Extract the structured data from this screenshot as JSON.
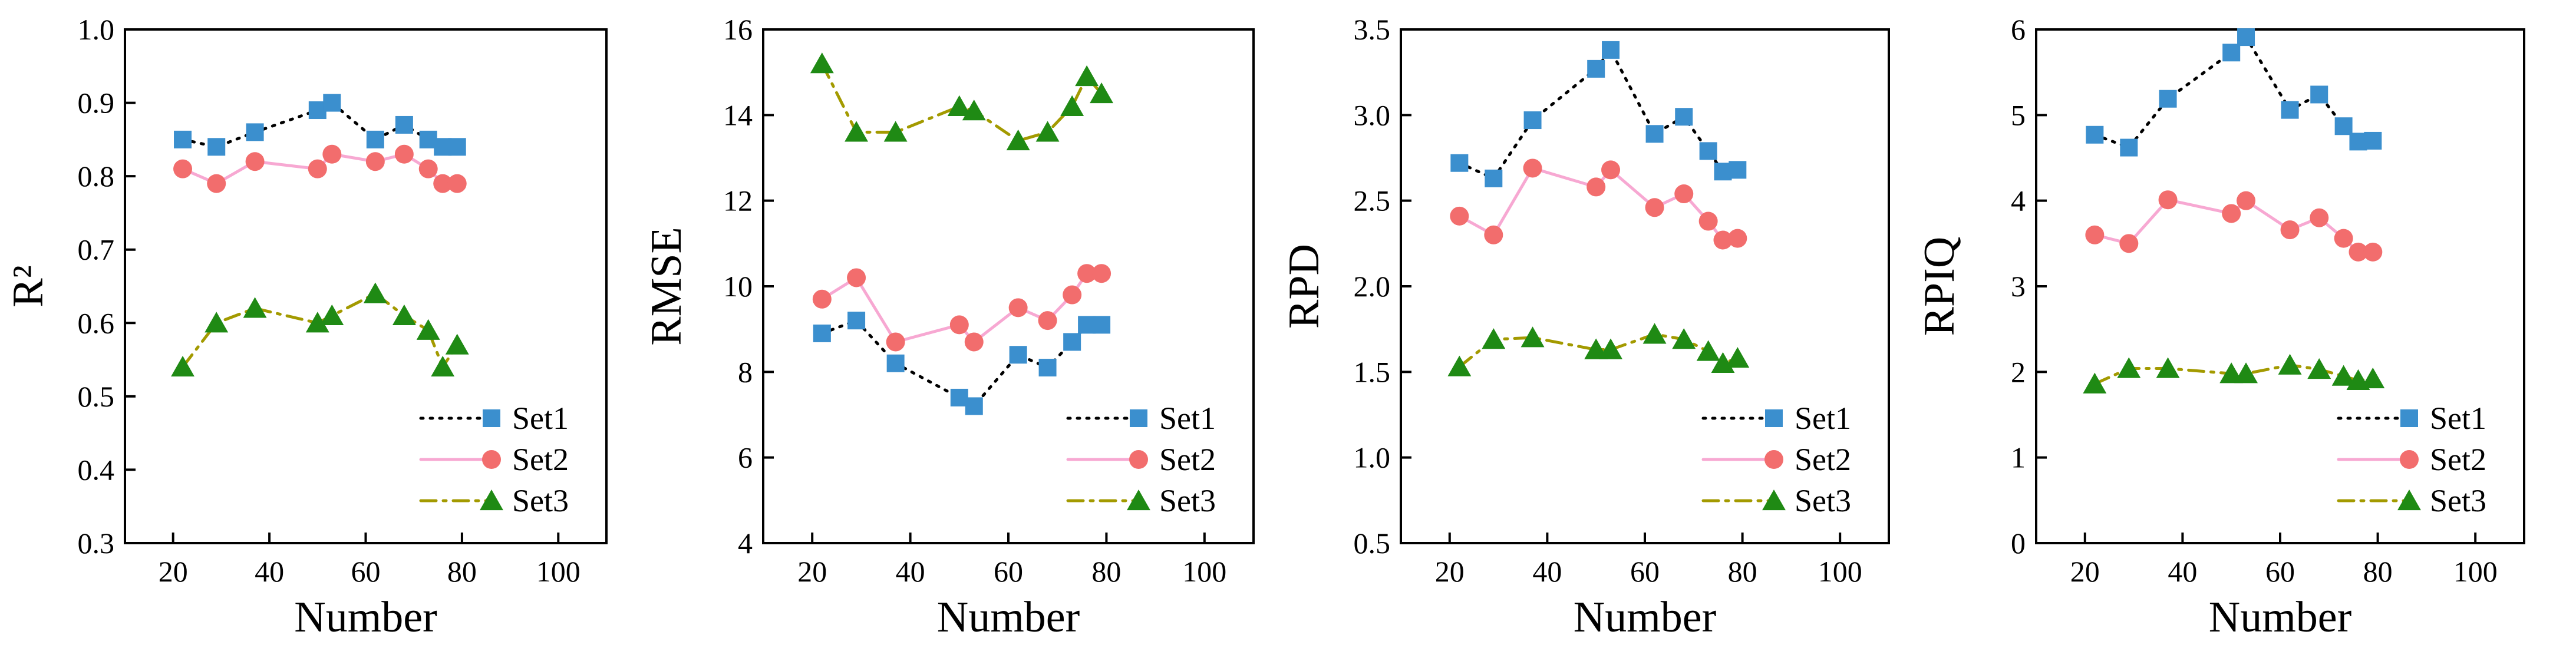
{
  "chart_data": [
    {
      "type": "line",
      "xlabel": "Number",
      "ylabel": "R²",
      "xlim": [
        10,
        110
      ],
      "ylim": [
        0.3,
        1.0
      ],
      "xticks": [
        20,
        40,
        60,
        80,
        100
      ],
      "yticks": [
        0.3,
        0.4,
        0.5,
        0.6,
        0.7,
        0.8,
        0.9,
        1.0
      ],
      "ytick_labels": [
        "0.3",
        "0.4",
        "0.5",
        "0.6",
        "0.7",
        "0.8",
        "0.9",
        "1.0"
      ],
      "legend_position": "bottom-right",
      "x": [
        22,
        29,
        37,
        50,
        53,
        62,
        68,
        73,
        76,
        79
      ],
      "series": [
        {
          "name": "Set1",
          "values": [
            0.85,
            0.84,
            0.86,
            0.89,
            0.9,
            0.85,
            0.87,
            0.85,
            0.84,
            0.84
          ]
        },
        {
          "name": "Set2",
          "values": [
            0.81,
            0.79,
            0.82,
            0.81,
            0.83,
            0.82,
            0.83,
            0.81,
            0.79,
            0.79
          ]
        },
        {
          "name": "Set3",
          "values": [
            0.54,
            0.6,
            0.62,
            0.6,
            0.61,
            0.64,
            0.61,
            0.59,
            0.54,
            0.57
          ]
        }
      ]
    },
    {
      "type": "line",
      "xlabel": "Number",
      "ylabel": "RMSE",
      "xlim": [
        10,
        110
      ],
      "ylim": [
        4,
        16
      ],
      "xticks": [
        20,
        40,
        60,
        80,
        100
      ],
      "yticks": [
        4,
        6,
        8,
        10,
        12,
        14,
        16
      ],
      "ytick_labels": [
        "4",
        "6",
        "8",
        "10",
        "12",
        "14",
        "16"
      ],
      "legend_position": "bottom-right",
      "x": [
        22,
        29,
        37,
        50,
        53,
        62,
        68,
        73,
        76,
        79
      ],
      "series": [
        {
          "name": "Set1",
          "values": [
            8.9,
            9.2,
            8.2,
            7.4,
            7.2,
            8.4,
            8.1,
            8.7,
            9.1,
            9.1
          ]
        },
        {
          "name": "Set2",
          "values": [
            9.7,
            10.2,
            8.7,
            9.1,
            8.7,
            9.5,
            9.2,
            9.8,
            10.3,
            10.3
          ]
        },
        {
          "name": "Set3",
          "values": [
            15.2,
            13.6,
            13.6,
            14.2,
            14.1,
            13.4,
            13.6,
            14.2,
            14.9,
            14.5
          ]
        }
      ]
    },
    {
      "type": "line",
      "xlabel": "Number",
      "ylabel": "RPD",
      "xlim": [
        10,
        110
      ],
      "ylim": [
        0.5,
        3.5
      ],
      "xticks": [
        20,
        40,
        60,
        80,
        100
      ],
      "yticks": [
        0.5,
        1.0,
        1.5,
        2.0,
        2.5,
        3.0,
        3.5
      ],
      "ytick_labels": [
        "0.5",
        "1.0",
        "1.5",
        "2.0",
        "2.5",
        "3.0",
        "3.5"
      ],
      "legend_position": "bottom-right",
      "x": [
        22,
        29,
        37,
        50,
        53,
        62,
        68,
        73,
        76,
        79
      ],
      "series": [
        {
          "name": "Set1",
          "values": [
            2.72,
            2.63,
            2.97,
            3.27,
            3.38,
            2.89,
            2.99,
            2.79,
            2.67,
            2.68
          ]
        },
        {
          "name": "Set2",
          "values": [
            2.41,
            2.3,
            2.69,
            2.58,
            2.68,
            2.46,
            2.54,
            2.38,
            2.27,
            2.28
          ]
        },
        {
          "name": "Set3",
          "values": [
            1.53,
            1.69,
            1.7,
            1.63,
            1.63,
            1.72,
            1.69,
            1.62,
            1.55,
            1.58
          ]
        }
      ]
    },
    {
      "type": "line",
      "xlabel": "Number",
      "ylabel": "RPIQ",
      "xlim": [
        10,
        110
      ],
      "ylim": [
        0,
        6
      ],
      "xticks": [
        20,
        40,
        60,
        80,
        100
      ],
      "yticks": [
        0,
        1,
        2,
        3,
        4,
        5,
        6
      ],
      "ytick_labels": [
        "0",
        "1",
        "2",
        "3",
        "4",
        "5",
        "6"
      ],
      "legend_position": "bottom-right",
      "x": [
        22,
        29,
        37,
        50,
        53,
        62,
        68,
        73,
        76,
        79
      ],
      "series": [
        {
          "name": "Set1",
          "values": [
            4.77,
            4.62,
            5.19,
            5.73,
            5.91,
            5.06,
            5.24,
            4.87,
            4.69,
            4.7
          ]
        },
        {
          "name": "Set2",
          "values": [
            3.6,
            3.5,
            4.01,
            3.85,
            4.0,
            3.66,
            3.8,
            3.56,
            3.4,
            3.4
          ]
        },
        {
          "name": "Set3",
          "values": [
            1.86,
            2.04,
            2.04,
            1.98,
            1.98,
            2.08,
            2.03,
            1.95,
            1.9,
            1.92
          ]
        }
      ]
    }
  ],
  "series_styles": [
    {
      "line_color": "#000000",
      "marker_color": "#3b8fce",
      "marker": "square",
      "dash": "dotted"
    },
    {
      "line_color": "#f7a8d2",
      "marker_color": "#f26d6d",
      "marker": "circle",
      "dash": "solid"
    },
    {
      "line_color": "#a39a00",
      "marker_color": "#1f8a14",
      "marker": "triangle",
      "dash": "dash-dot"
    }
  ]
}
